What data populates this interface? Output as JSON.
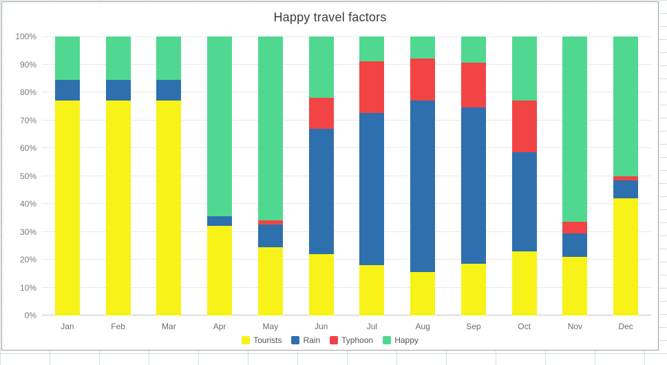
{
  "chart_data": {
    "type": "bar",
    "stacked": true,
    "percent_stack": true,
    "title": "Happy travel factors",
    "categories": [
      "Jan",
      "Feb",
      "Mar",
      "Apr",
      "May",
      "Jun",
      "Jul",
      "Aug",
      "Sep",
      "Oct",
      "Nov",
      "Dec"
    ],
    "series": [
      {
        "name": "Tourists",
        "color": "#f7f318",
        "values": [
          77,
          77,
          77,
          32,
          24.5,
          22,
          18,
          15.5,
          18.5,
          23,
          21,
          42
        ]
      },
      {
        "name": "Rain",
        "color": "#2e6fae",
        "values": [
          7.5,
          7.5,
          7.5,
          3.5,
          8,
          45,
          54.5,
          61.5,
          56,
          35.5,
          8.5,
          6.5
        ]
      },
      {
        "name": "Typhoon",
        "color": "#f24444",
        "values": [
          0,
          0,
          0,
          0,
          1.5,
          11,
          18.5,
          15,
          16,
          18.5,
          4,
          1.5
        ]
      },
      {
        "name": "Happy",
        "color": "#50d890",
        "values": [
          15.5,
          15.5,
          15.5,
          64.5,
          66,
          22,
          9,
          8,
          9.5,
          23,
          66.5,
          50
        ]
      }
    ],
    "ylim": [
      0,
      100
    ],
    "ytick_labels": [
      "0%",
      "10%",
      "20%",
      "30%",
      "40%",
      "50%",
      "60%",
      "70%",
      "80%",
      "90%",
      "100%"
    ],
    "grid": true,
    "legend_position": "bottom",
    "colors": {
      "grid_line": "#e8e8e8",
      "axis_line": "#c2c2c2",
      "tick_text": "#7a7a7a",
      "title_text": "#3c3c3c",
      "legend_text": "#555555",
      "panel_border": "#9e9e9e",
      "sheet_grid": "#cfe4cf"
    }
  }
}
